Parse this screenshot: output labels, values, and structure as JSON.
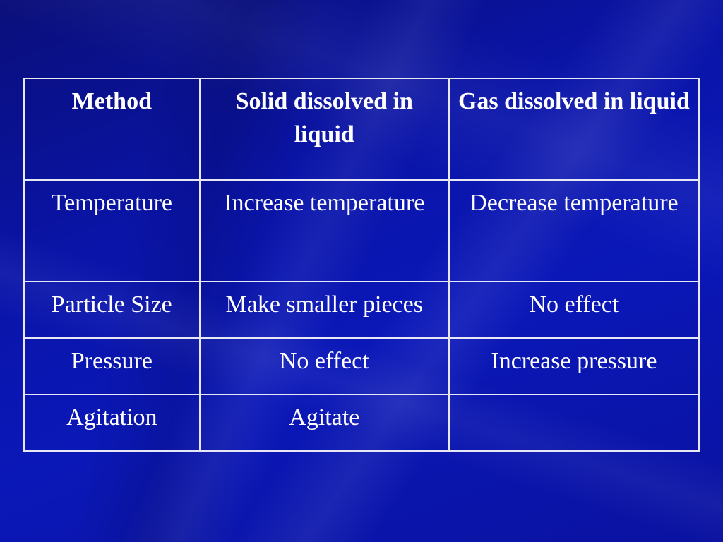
{
  "table": {
    "headers": [
      "Method",
      "Solid dissolved in liquid",
      "Gas dissolved in liquid"
    ],
    "rows": [
      [
        "Temperature",
        "Increase temperature",
        "Decrease temperature"
      ],
      [
        "Particle Size",
        "Make smaller pieces",
        "No effect"
      ],
      [
        "Pressure",
        "No effect",
        "Increase pressure"
      ],
      [
        "Agitation",
        "Agitate",
        ""
      ]
    ]
  },
  "colors": {
    "background": "#0b16b0",
    "text": "#ffffff",
    "border": "#e8e8f4"
  }
}
